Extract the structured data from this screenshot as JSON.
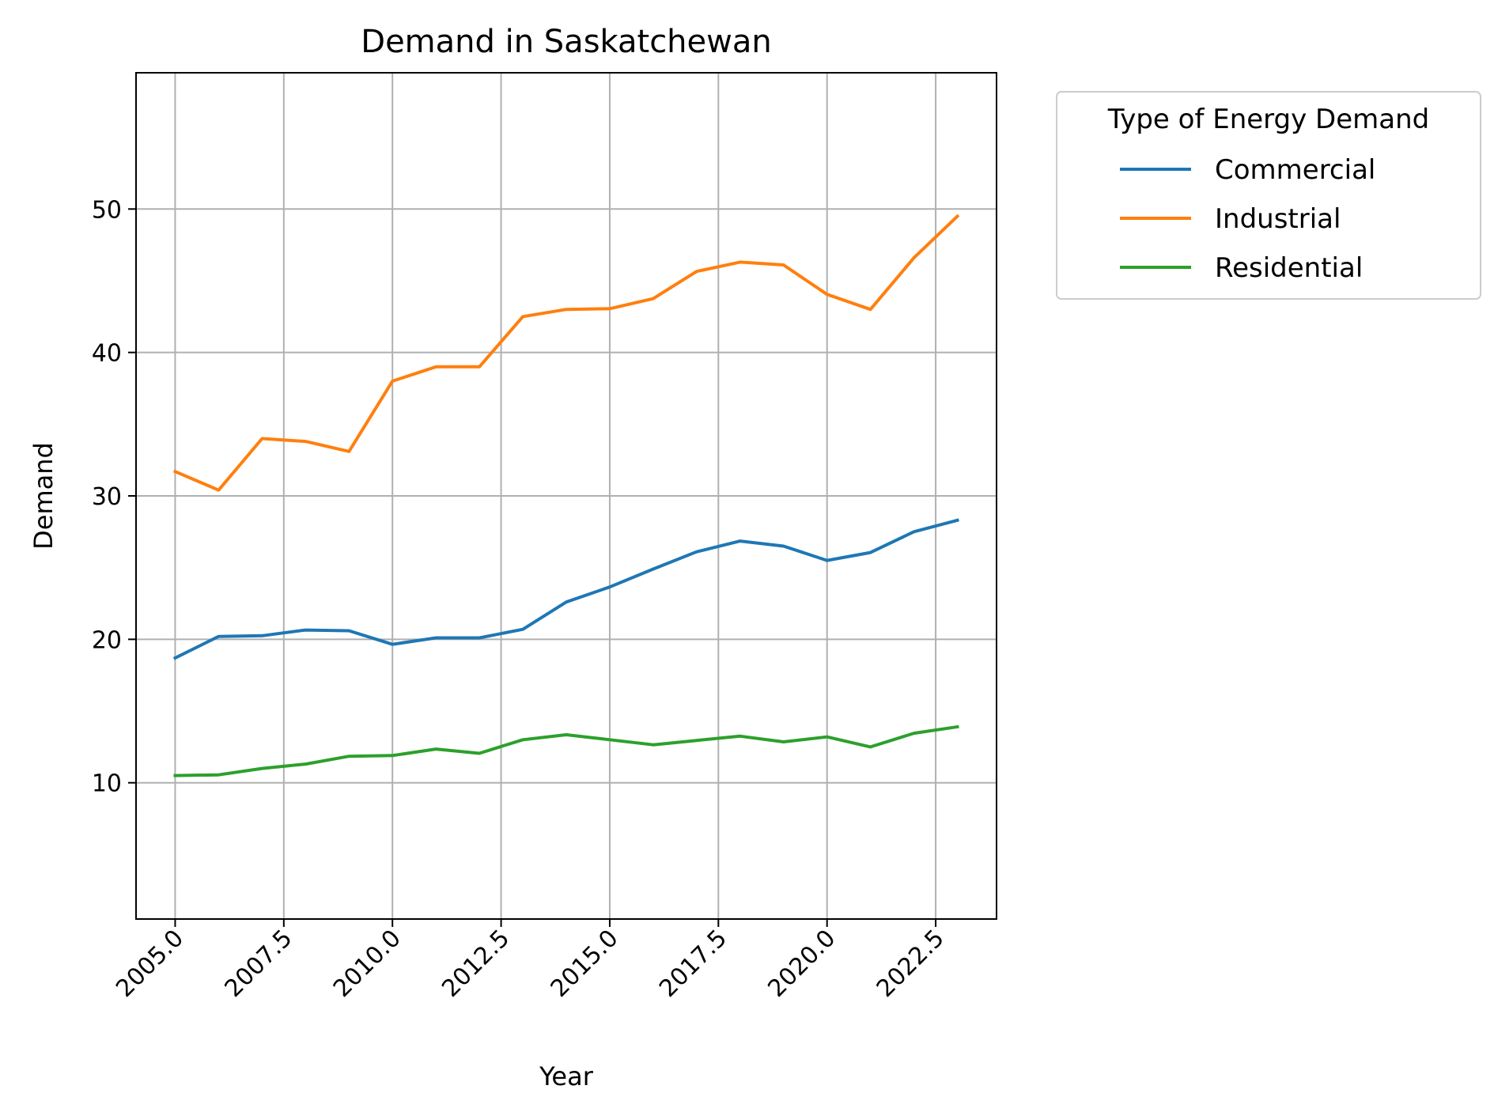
{
  "chart_data": {
    "type": "line",
    "title": "Demand in Saskatchewan",
    "xlabel": "Year",
    "ylabel": "Demand",
    "xlim": [
      2004.1,
      2023.9
    ],
    "ylim": [
      0.5,
      59.5
    ],
    "x_ticks": [
      "2005.0",
      "2007.5",
      "2010.0",
      "2012.5",
      "2015.0",
      "2017.5",
      "2020.0",
      "2022.5"
    ],
    "x_tick_values": [
      2005,
      2007.5,
      2010,
      2012.5,
      2015,
      2017.5,
      2020,
      2022.5
    ],
    "y_ticks": [
      "10",
      "20",
      "30",
      "40",
      "50"
    ],
    "y_tick_values": [
      10,
      20,
      30,
      40,
      50
    ],
    "grid": true,
    "legend": {
      "title": "Type of Energy Demand",
      "placement": "outside-upper-right"
    },
    "x": [
      2005,
      2006,
      2007,
      2008,
      2009,
      2010,
      2011,
      2012,
      2013,
      2014,
      2015,
      2016,
      2017,
      2018,
      2019,
      2020,
      2021,
      2022,
      2023
    ],
    "series": [
      {
        "name": "Commercial",
        "color": "#1f77b4",
        "values": [
          18.7,
          20.2,
          20.25,
          20.65,
          20.6,
          19.65,
          20.1,
          20.1,
          20.7,
          22.6,
          23.65,
          24.9,
          26.1,
          26.85,
          26.5,
          25.5,
          26.05,
          27.5,
          28.3
        ]
      },
      {
        "name": "Industrial",
        "color": "#ff7f0e",
        "values": [
          31.7,
          30.4,
          34.0,
          33.8,
          33.1,
          38.0,
          39.0,
          39.0,
          42.5,
          43.0,
          43.05,
          43.75,
          45.65,
          46.3,
          46.1,
          44.05,
          43.0,
          46.6,
          49.5
        ]
      },
      {
        "name": "Residential",
        "color": "#2ca02c",
        "values": [
          10.5,
          10.55,
          11.0,
          11.3,
          11.85,
          11.9,
          12.35,
          12.05,
          13.0,
          13.35,
          13.0,
          12.65,
          12.95,
          13.25,
          12.85,
          13.2,
          12.5,
          13.45,
          13.9
        ]
      }
    ]
  }
}
